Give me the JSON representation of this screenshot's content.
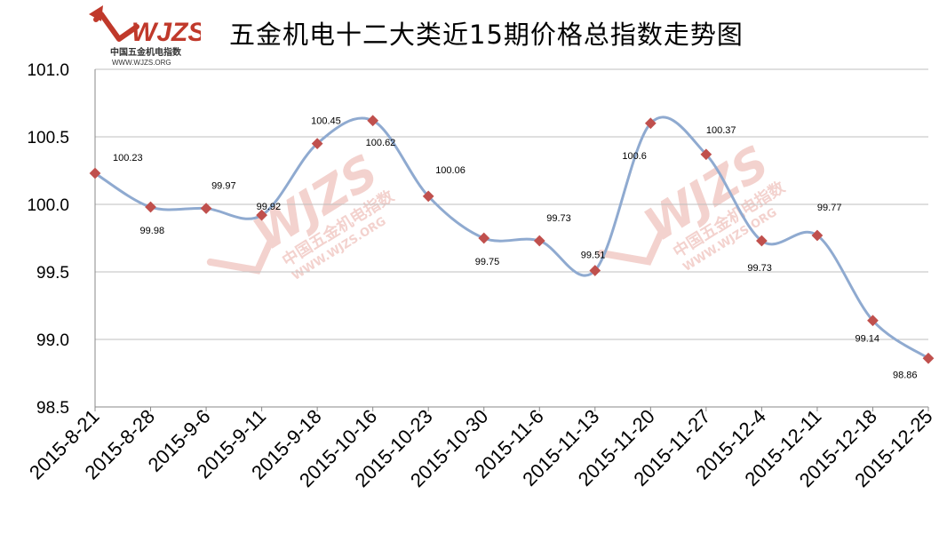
{
  "logo": {
    "mark": "WJZS",
    "name_cn": "中国五金机电指数",
    "url": "WWW.WJZS.ORG"
  },
  "chart_data": {
    "type": "line",
    "title": "五金机电十二大类近15期价格总指数走势图",
    "xlabel": "",
    "ylabel": "",
    "categories": [
      "2015-8-21",
      "2015-8-28",
      "2015-9-6",
      "2015-9-11",
      "2015-9-18",
      "2015-10-16",
      "2015-10-23",
      "2015-10-30",
      "2015-11-6",
      "2015-11-13",
      "2015-11-20",
      "2015-11-27",
      "2015-12-4",
      "2015-12-11",
      "2015-12-18",
      "2015-12-25"
    ],
    "series": [
      {
        "values": [
          100.23,
          99.98,
          99.97,
          99.92,
          100.45,
          100.62,
          100.06,
          99.75,
          99.73,
          99.51,
          100.6,
          100.37,
          99.73,
          99.77,
          99.14,
          98.86
        ],
        "labels": [
          "100.23",
          "99.98",
          "99.97",
          "99.92",
          "100.45",
          "100.62",
          "100.06",
          "99.75",
          "99.73",
          "99.51",
          "100.6",
          "100.37",
          "99.73",
          "99.77",
          "99.14",
          "98.86"
        ]
      }
    ],
    "ylim": [
      98.5,
      101.0
    ],
    "yticks": [
      "98.5",
      "99.0",
      "99.5",
      "100.0",
      "100.5",
      "101.0"
    ],
    "grid": true,
    "legend": "none",
    "colors": {
      "line": "#8FAAD0",
      "marker": "#C0504D",
      "grid": "#BFBFBF",
      "watermark": "#E8A69E"
    }
  }
}
